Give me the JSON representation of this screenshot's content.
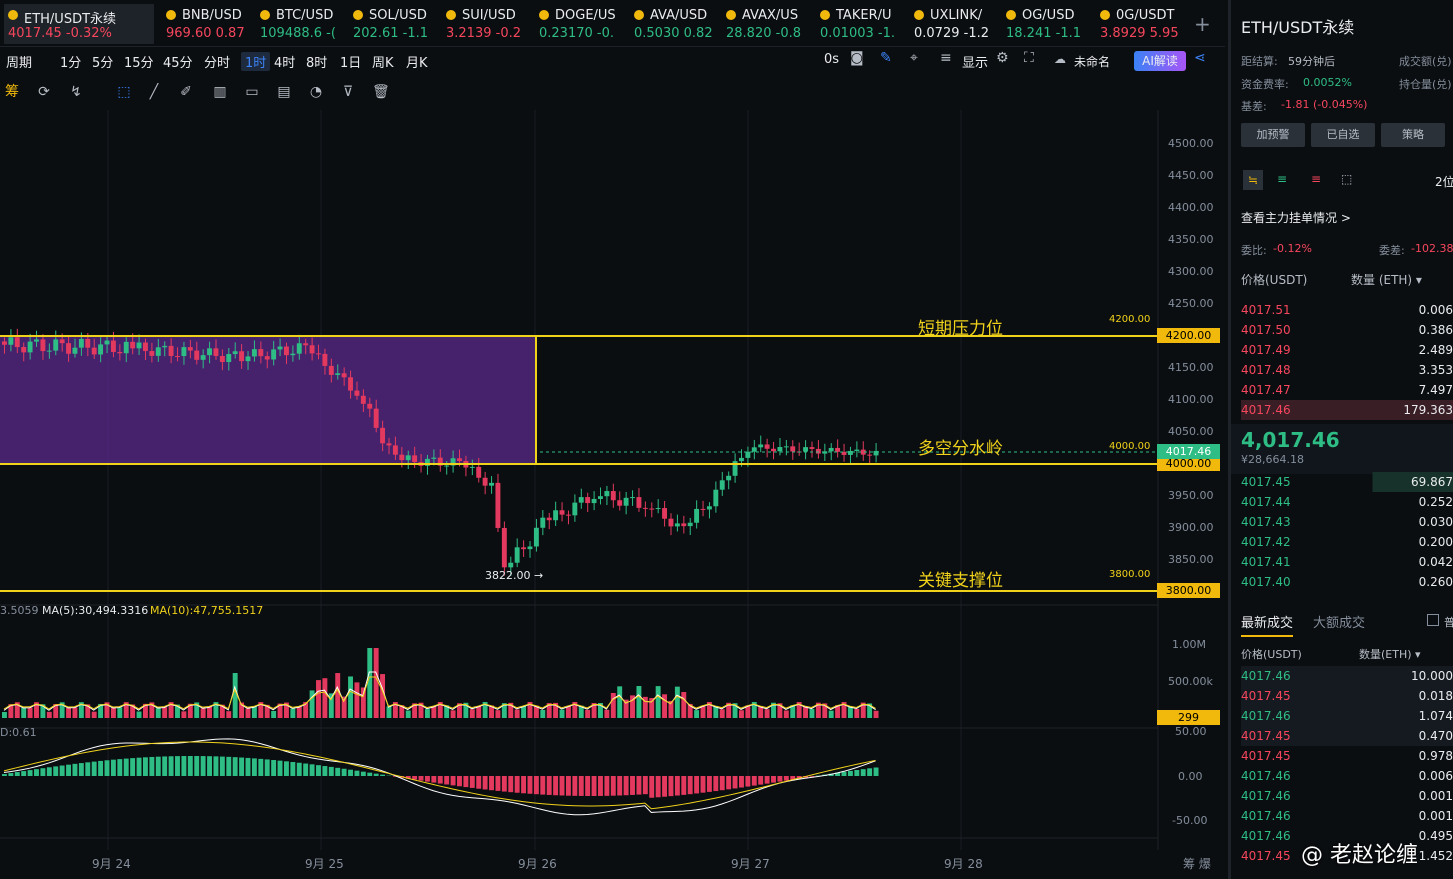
{
  "tickers": [
    {
      "name": "ETH/USDT永续",
      "price": "4017.45",
      "change": "-0.32%",
      "color": "red",
      "active": true
    },
    {
      "name": "BNB/USD",
      "price": "969.60",
      "change": "0.87",
      "color": "red"
    },
    {
      "name": "BTC/USD",
      "price": "109488.6",
      "change": "-(",
      "color": "green"
    },
    {
      "name": "SOL/USD",
      "price": "202.61",
      "change": "-1.1",
      "color": "green"
    },
    {
      "name": "SUI/USD",
      "price": "3.2139",
      "change": "-0.2",
      "color": "red"
    },
    {
      "name": "DOGE/US",
      "price": "0.23170",
      "change": "-0.",
      "color": "green"
    },
    {
      "name": "AVA/USD",
      "price": "0.5030",
      "change": "0.82",
      "color": "green"
    },
    {
      "name": "AVAX/US",
      "price": "28.820",
      "change": "-0.8",
      "color": "green"
    },
    {
      "name": "TAKER/U",
      "price": "0.01003",
      "change": "-1.",
      "color": "green"
    },
    {
      "name": "UXLINK/",
      "price": "0.0729",
      "change": "-1.2",
      "color": "white"
    },
    {
      "name": "OG/USD",
      "price": "18.241",
      "change": "-1.1",
      "color": "green"
    },
    {
      "name": "0G/USDT",
      "price": "3.8929",
      "change": "5.95",
      "color": "red"
    }
  ],
  "periods": [
    "周期",
    "1分",
    "5分",
    "15分",
    "45分",
    "分时",
    "1时",
    "4时",
    "8时",
    "1日",
    "周K",
    "月K"
  ],
  "selected_period": "1时",
  "toolbar_right": {
    "zero": "0s",
    "display": "显示",
    "unnamed": "未命名",
    "ai": "AI解读"
  },
  "draw_first": "筹",
  "y_axis": [
    "4500.00",
    "4450.00",
    "4400.00",
    "4350.00",
    "4300.00",
    "4250.00",
    "4200.00",
    "4150.00",
    "4100.00",
    "4050.00",
    "4000.00",
    "3950.00",
    "3900.00",
    "3850.00"
  ],
  "levels": {
    "resistance": {
      "label": "短期压力位",
      "value": "4200.00"
    },
    "pivot": {
      "label": "多空分水岭",
      "value": "4000.00"
    },
    "support": {
      "label": "关键支撑位",
      "value": "3800.00"
    },
    "current": "4017.46",
    "pivot_tag": "4000.00",
    "low_marker": "3822.00 →"
  },
  "indicators": {
    "ma_prefix": "3.5059",
    "ma5": "MA(5):30,494.3316",
    "ma10": "MA(10):47,755.1517",
    "vol_axis": [
      "1.00M",
      "500.00k"
    ],
    "vol_tag": "299",
    "macd_label": "D:0.61",
    "macd_axis": [
      "50.00",
      "0.00",
      "-50.00"
    ]
  },
  "x_axis": [
    "9月 24",
    "9月 25",
    "9月 26",
    "9月 27",
    "9月 28"
  ],
  "x_right": "筹 爆",
  "right_panel": {
    "title": "ETH/USDT永续",
    "settle_label": "距结算:",
    "settle_value": "59分钟后",
    "funding_label": "资金费率:",
    "funding_value": "0.0052%",
    "basis_label": "基差:",
    "basis_value": "-1.81 (-0.045%)",
    "vol_label": "成交额(兑)",
    "oi_label": "持仓量(兑)",
    "buttons": [
      "加预警",
      "已自选",
      "策略"
    ],
    "depth": "2位",
    "main_orders": "查看主力挂单情况 >",
    "ratio_label": "委比:",
    "ratio_value": "-0.12%",
    "diff_label": "委差:",
    "diff_value": "-102.38",
    "col_price": "价格(USDT)",
    "col_qty": "数量 (ETH) ▾",
    "asks": [
      {
        "p": "4017.51",
        "q": "0.006"
      },
      {
        "p": "4017.50",
        "q": "0.386"
      },
      {
        "p": "4017.49",
        "q": "2.489"
      },
      {
        "p": "4017.48",
        "q": "3.353"
      },
      {
        "p": "4017.47",
        "q": "7.497"
      },
      {
        "p": "4017.46",
        "q": "179.363"
      }
    ],
    "last_price": "4,017.46",
    "last_cny": "¥28,664.18",
    "bids": [
      {
        "p": "4017.45",
        "q": "69.867"
      },
      {
        "p": "4017.44",
        "q": "0.252"
      },
      {
        "p": "4017.43",
        "q": "0.030"
      },
      {
        "p": "4017.42",
        "q": "0.200"
      },
      {
        "p": "4017.41",
        "q": "0.042"
      },
      {
        "p": "4017.40",
        "q": "0.260"
      }
    ],
    "trade_tab1": "最新成交",
    "trade_tab2": "大额成交",
    "trade_extra": "普",
    "trade_col_price": "价格(USDT)",
    "trade_col_qty": "数量(ETH) ▾",
    "trades": [
      {
        "p": "4017.46",
        "q": "10.000",
        "c": "green"
      },
      {
        "p": "4017.45",
        "q": "0.018",
        "c": "red"
      },
      {
        "p": "4017.46",
        "q": "1.074",
        "c": "green"
      },
      {
        "p": "4017.45",
        "q": "0.470",
        "c": "red"
      },
      {
        "p": "4017.45",
        "q": "0.978",
        "c": "red"
      },
      {
        "p": "4017.46",
        "q": "0.006",
        "c": "green"
      },
      {
        "p": "4017.46",
        "q": "0.001",
        "c": "green"
      },
      {
        "p": "4017.46",
        "q": "0.001",
        "c": "green"
      },
      {
        "p": "4017.46",
        "q": "0.495",
        "c": "green"
      },
      {
        "p": "4017.45",
        "q": "1.452",
        "c": "red"
      }
    ],
    "watermark": "@ 老赵论缠"
  }
}
